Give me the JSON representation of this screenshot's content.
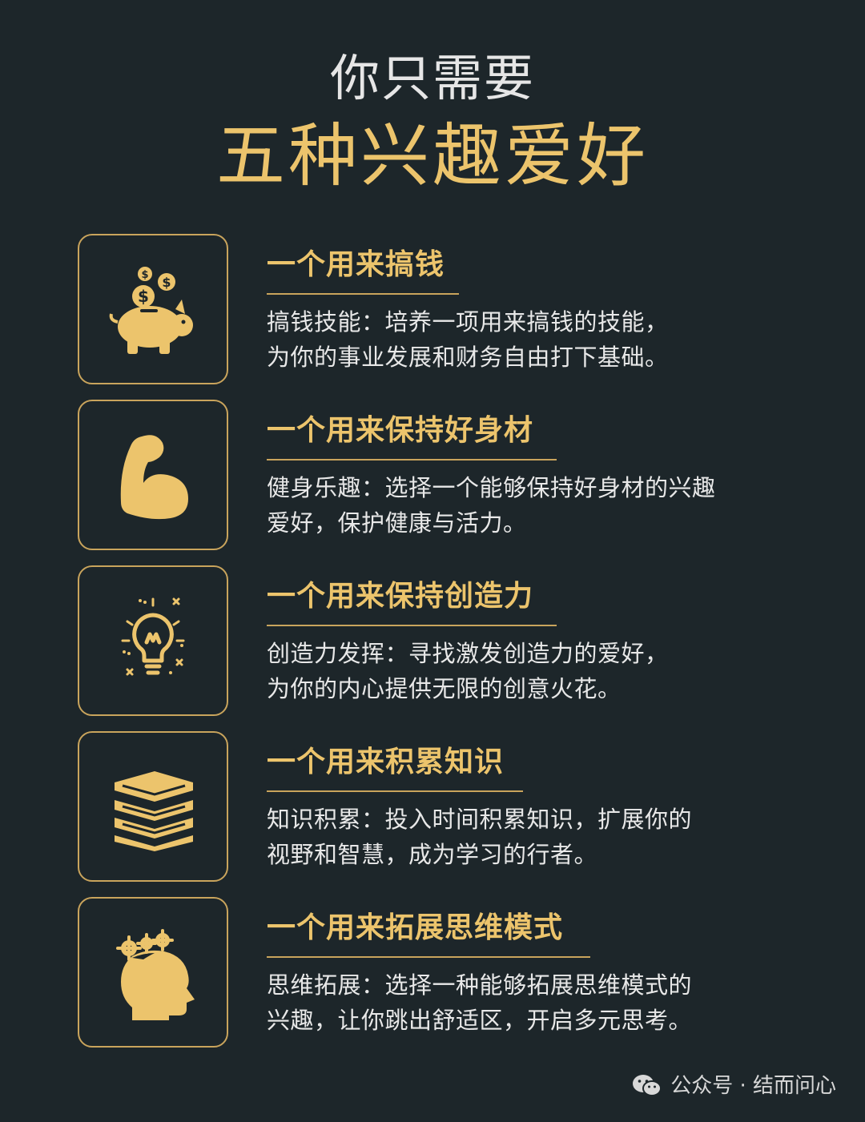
{
  "header": {
    "subtitle": "你只需要",
    "title": "五种兴趣爱好"
  },
  "items": [
    {
      "icon": "piggy-bank-icon",
      "heading": "一个用来搞钱",
      "line1": "搞钱技能：培养一项用来搞钱的技能，",
      "line2": "为你的事业发展和财务自由打下基础。"
    },
    {
      "icon": "flexed-arm-icon",
      "heading": "一个用来保持好身材",
      "line1": "健身乐趣：选择一个能够保持好身材的兴趣",
      "line2": "爱好，保护健康与活力。"
    },
    {
      "icon": "lightbulb-icon",
      "heading": "一个用来保持创造力",
      "line1": "创造力发挥：寻找激发创造力的爱好，",
      "line2": "为你的内心提供无限的创意火花。"
    },
    {
      "icon": "books-stack-icon",
      "heading": "一个用来积累知识",
      "line1": "知识积累：投入时间积累知识，扩展你的",
      "line2": "视野和智慧，成为学习的行者。"
    },
    {
      "icon": "head-gears-icon",
      "heading": "一个用来拓展思维模式",
      "line1": "思维拓展：选择一种能够拓展思维模式的",
      "line2": "兴趣，让你跳出舒适区，开启多元思考。"
    }
  ],
  "footer": {
    "icon": "wechat-icon",
    "text": "公众号 · 结而问心"
  },
  "colors": {
    "background": "#1d262a",
    "gold": "#ecc46c",
    "border": "#c9a45c",
    "text": "#e8e8e8"
  }
}
